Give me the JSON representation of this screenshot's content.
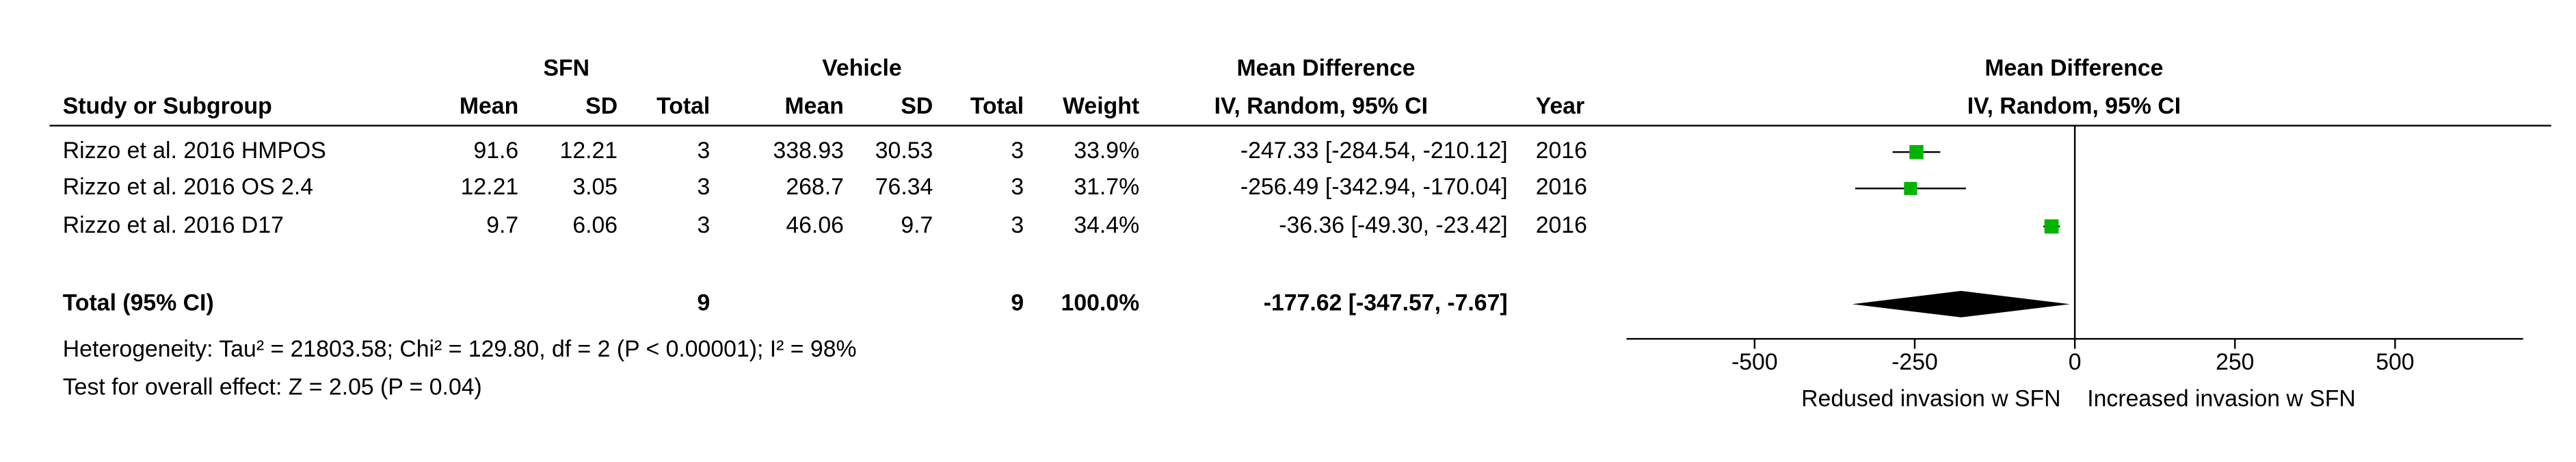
{
  "chart_data": {
    "type": "forest",
    "group_headers": [
      "SFN",
      "Vehicle",
      "Mean Difference"
    ],
    "column_headers": [
      "Study or Subgroup",
      "Mean",
      "SD",
      "Total",
      "Mean",
      "SD",
      "Total",
      "Weight",
      "IV, Random, 95% CI",
      "Year"
    ],
    "plot_title": "Mean Difference",
    "plot_subtitle": "IV, Random, 95% CI",
    "rows": [
      {
        "study": "Rizzo et al. 2016 HMPOS",
        "sfn_mean": 91.6,
        "sfn_sd": 12.21,
        "sfn_total": 3,
        "veh_mean": 338.93,
        "veh_sd": 30.53,
        "veh_total": 3,
        "weight": 33.9,
        "weight_label": "33.9%",
        "md": -247.33,
        "ci_low": -284.54,
        "ci_high": -210.12,
        "ci_label": "-247.33 [-284.54, -210.12]",
        "year": "2016"
      },
      {
        "study": "Rizzo et al. 2016 OS 2.4",
        "sfn_mean": 12.21,
        "sfn_sd": 3.05,
        "sfn_total": 3,
        "veh_mean": 268.7,
        "veh_sd": 76.34,
        "veh_total": 3,
        "weight": 31.7,
        "weight_label": "31.7%",
        "md": -256.49,
        "ci_low": -342.94,
        "ci_high": -170.04,
        "ci_label": "-256.49 [-342.94, -170.04]",
        "year": "2016"
      },
      {
        "study": "Rizzo et al. 2016 D17",
        "sfn_mean": 9.7,
        "sfn_sd": 6.06,
        "sfn_total": 3,
        "veh_mean": 46.06,
        "veh_sd": 9.7,
        "veh_total": 3,
        "weight": 34.4,
        "weight_label": "34.4%",
        "md": -36.36,
        "ci_low": -49.3,
        "ci_high": -23.42,
        "ci_label": "-36.36 [-49.30, -23.42]",
        "year": "2016"
      }
    ],
    "total": {
      "study": "Total (95% CI)",
      "sfn_total": 9,
      "veh_total": 9,
      "weight": 100.0,
      "weight_label": "100.0%",
      "md": -177.62,
      "ci_low": -347.57,
      "ci_high": -7.67,
      "ci_label": "-177.62 [-347.57, -7.67]"
    },
    "notes": [
      "Heterogeneity: Tau² = 21803.58; Chi² = 129.80, df = 2 (P < 0.00001); I² = 98%",
      "Test for overall effect: Z = 2.05 (P = 0.04)"
    ],
    "x_label_left": "Redused invasion w SFN",
    "x_label_right": "Increased invasion w SFN",
    "xlim": [
      -700,
      700
    ],
    "xticks": [
      -500,
      -250,
      0,
      250,
      500
    ],
    "study_color": "#00b400",
    "total_color": "#000000"
  }
}
